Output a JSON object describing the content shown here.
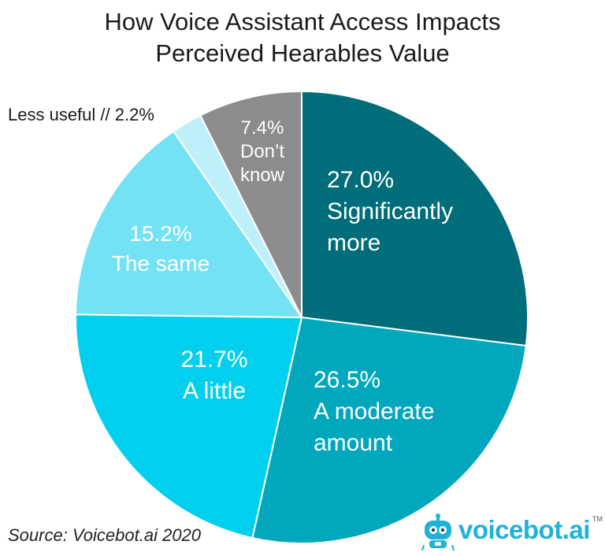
{
  "chart_data": {
    "type": "pie",
    "title_lines": [
      "How Voice Assistant Access Impacts",
      "Perceived Hearables Value"
    ],
    "slices": [
      {
        "value": 27.0,
        "value_label": "27.0%",
        "label_lines": [
          "Significantly",
          "more"
        ],
        "color": "#006d7a"
      },
      {
        "value": 26.5,
        "value_label": "26.5%",
        "label_lines": [
          "A moderate",
          "amount"
        ],
        "color": "#00a7bd"
      },
      {
        "value": 21.7,
        "value_label": "21.7%",
        "label_lines": [
          "A little"
        ],
        "color": "#00d0ee"
      },
      {
        "value": 15.2,
        "value_label": "15.2%",
        "label_lines": [
          "The same"
        ],
        "color": "#73e2f5"
      },
      {
        "value": 2.2,
        "value_label": "Less useful // 2.2%",
        "label_lines": [],
        "color": "#bdf0fa"
      },
      {
        "value": 7.4,
        "value_label": "7.4%",
        "label_lines": [
          "Don’t",
          "know"
        ],
        "color": "#8c8c8c"
      }
    ]
  },
  "footer": {
    "source": "Source: Voicebot.ai 2020",
    "brand": "voicebot.ai",
    "brand_tm": "TM"
  },
  "colors": {
    "brand": "#1fb2d8",
    "logo_robot": "#1fb2d8"
  }
}
